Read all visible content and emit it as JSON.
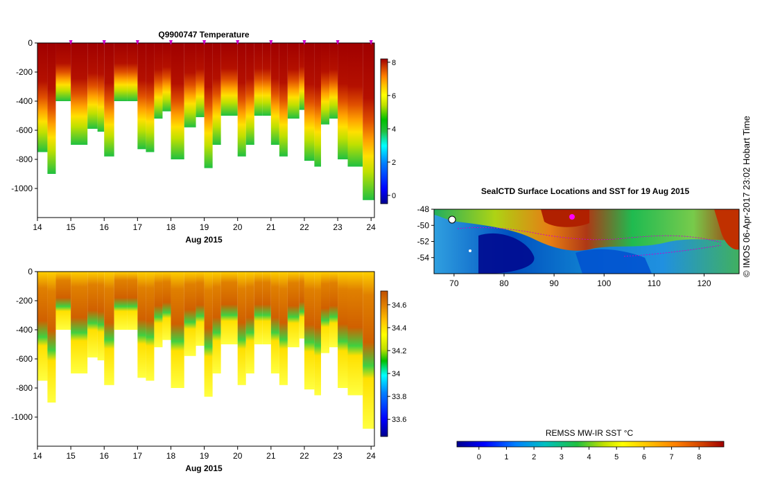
{
  "temperature_title": "Q9900747  Temperature",
  "map_title": "SealCTD Surface Locations and SST for 19 Aug 2015",
  "sst_label": "REMSS MW-IR SST °C",
  "credit": "© IMOS 06-Apr-2017 23:02 Hobart Time",
  "colors": {
    "temperature_scale": [
      "#00008f",
      "#0000ff",
      "#0080ff",
      "#00ffff",
      "#20c040",
      "#00c000",
      "#c0e000",
      "#ffff00",
      "#ffc000",
      "#ff8000",
      "#d04000",
      "#a00000"
    ],
    "salinity_scale": [
      "#00008f",
      "#0000ff",
      "#0080ff",
      "#00ffff",
      "#00c000",
      "#c0e000",
      "#ffff00",
      "#ffc000",
      "#e08000",
      "#c05000"
    ],
    "profile_marker": "#cc00cc",
    "track": "#cc00cc"
  },
  "chart_data": [
    {
      "type": "heatmap",
      "name": "temperature-section",
      "title": "Q9900747  Temperature",
      "xlabel": "Aug 2015",
      "xlim": [
        14,
        24.1
      ],
      "ylim": [
        -1200,
        0
      ],
      "x_ticks": [
        "14",
        "15",
        "16",
        "17",
        "18",
        "19",
        "20",
        "21",
        "22",
        "23",
        "24"
      ],
      "y_ticks": [
        "0",
        "-200",
        "-400",
        "-600",
        "-800",
        "-1000"
      ],
      "colorbar": {
        "ticks": [
          "0",
          "2",
          "4",
          "6",
          "8"
        ],
        "range": [
          -0.5,
          8.2
        ]
      },
      "profile_marks": [
        15,
        16,
        17,
        18,
        19,
        20,
        21,
        22,
        23,
        24
      ],
      "profile_max_depths": [
        {
          "x": 14.0,
          "depth": -750
        },
        {
          "x": 14.3,
          "depth": -900
        },
        {
          "x": 14.55,
          "depth": -400
        },
        {
          "x": 15.0,
          "depth": -700
        },
        {
          "x": 15.5,
          "depth": -590
        },
        {
          "x": 15.8,
          "depth": -610
        },
        {
          "x": 16.0,
          "depth": -780
        },
        {
          "x": 16.3,
          "depth": -400
        },
        {
          "x": 16.7,
          "depth": -400
        },
        {
          "x": 17.0,
          "depth": -730
        },
        {
          "x": 17.25,
          "depth": -750
        },
        {
          "x": 17.5,
          "depth": -520
        },
        {
          "x": 17.75,
          "depth": -470
        },
        {
          "x": 18.0,
          "depth": -800
        },
        {
          "x": 18.4,
          "depth": -580
        },
        {
          "x": 18.75,
          "depth": -510
        },
        {
          "x": 19.0,
          "depth": -860
        },
        {
          "x": 19.25,
          "depth": -700
        },
        {
          "x": 19.5,
          "depth": -500
        },
        {
          "x": 20.0,
          "depth": -780
        },
        {
          "x": 20.25,
          "depth": -700
        },
        {
          "x": 20.5,
          "depth": -500
        },
        {
          "x": 20.75,
          "depth": -500
        },
        {
          "x": 21.0,
          "depth": -700
        },
        {
          "x": 21.25,
          "depth": -780
        },
        {
          "x": 21.5,
          "depth": -520
        },
        {
          "x": 21.85,
          "depth": -460
        },
        {
          "x": 22.0,
          "depth": -810
        },
        {
          "x": 22.3,
          "depth": -850
        },
        {
          "x": 22.5,
          "depth": -560
        },
        {
          "x": 22.75,
          "depth": -520
        },
        {
          "x": 23.0,
          "depth": -800
        },
        {
          "x": 23.3,
          "depth": -850
        },
        {
          "x": 23.75,
          "depth": -1080
        }
      ]
    },
    {
      "type": "heatmap",
      "name": "salinity-section",
      "title": "",
      "xlabel": "Aug 2015",
      "xlim": [
        14,
        24.1
      ],
      "ylim": [
        -1200,
        0
      ],
      "x_ticks": [
        "14",
        "15",
        "16",
        "17",
        "18",
        "19",
        "20",
        "21",
        "22",
        "23",
        "24"
      ],
      "y_ticks": [
        "0",
        "-200",
        "-400",
        "-600",
        "-800",
        "-1000"
      ],
      "colorbar": {
        "ticks": [
          "33.6",
          "33.8",
          "34",
          "34.2",
          "34.4",
          "34.6"
        ],
        "range": [
          33.45,
          34.72
        ]
      }
    },
    {
      "type": "heatmap",
      "name": "sst-map",
      "title": "SealCTD Surface Locations and SST for 19 Aug 2015",
      "xlim": [
        66,
        127
      ],
      "ylim": [
        -56,
        -48
      ],
      "x_ticks": [
        "70",
        "80",
        "90",
        "100",
        "110",
        "120"
      ],
      "y_ticks": [
        "-48",
        "-50",
        "-52",
        "-54"
      ],
      "colorbar": {
        "label": "REMSS MW-IR SST °C",
        "ticks": [
          "0",
          "1",
          "2",
          "3",
          "4",
          "5",
          "6",
          "7",
          "8"
        ],
        "range": [
          -0.8,
          8.9
        ]
      }
    }
  ]
}
